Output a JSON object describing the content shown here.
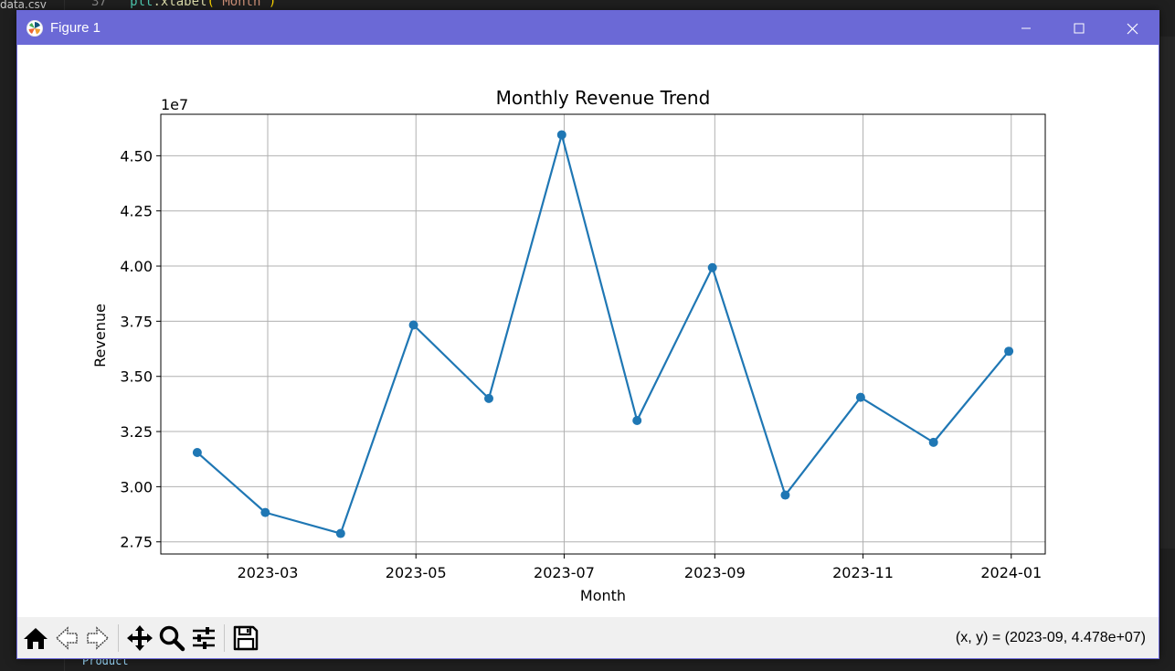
{
  "background": {
    "sidebar_file": "data.csv",
    "code_line_number": "37",
    "code_obj": "plt",
    "code_fn": ".xlabel",
    "code_str": "'Month'",
    "code_bottom": "Product"
  },
  "window": {
    "title": "Figure 1",
    "titlebar_color": "#6b69d6"
  },
  "toolbar": {
    "coords_text": "(x, y) = (2023-09, 4.478e+07)"
  },
  "icons": {
    "home": "home-icon",
    "back": "back-arrow-icon",
    "forward": "forward-arrow-icon",
    "pan": "move-icon",
    "zoom": "magnifier-icon",
    "configure": "sliders-icon",
    "save": "floppy-disk-icon"
  },
  "chart_data": {
    "type": "line",
    "title": "Monthly Revenue Trend",
    "xlabel": "Month",
    "ylabel": "Revenue",
    "y_offset_label": "1e7",
    "x": [
      "2023-01-31",
      "2023-02-28",
      "2023-03-31",
      "2023-04-30",
      "2023-05-31",
      "2023-06-30",
      "2023-07-31",
      "2023-08-31",
      "2023-09-30",
      "2023-10-31",
      "2023-11-30",
      "2023-12-31"
    ],
    "series": [
      {
        "values": [
          31550000,
          28830000,
          27880000,
          37330000,
          34000000,
          45950000,
          33000000,
          39930000,
          29620000,
          34050000,
          32010000,
          36140000
        ],
        "color": "#1f77b4",
        "marker": "circle"
      }
    ],
    "x_ticks": [
      "2023-03",
      "2023-05",
      "2023-07",
      "2023-09",
      "2023-11",
      "2024-01"
    ],
    "x_tick_dates": [
      "2023-03-01",
      "2023-05-01",
      "2023-07-01",
      "2023-09-01",
      "2023-11-01",
      "2024-01-01"
    ],
    "xlim": [
      "2023-01-16",
      "2024-01-15"
    ],
    "y_ticks": [
      2.75,
      3.0,
      3.25,
      3.5,
      3.75,
      4.0,
      4.25,
      4.5
    ],
    "y_tick_labels": [
      "2.75",
      "3.00",
      "3.25",
      "3.50",
      "3.75",
      "4.00",
      "4.25",
      "4.50"
    ],
    "ylim": [
      26950000,
      46880000
    ],
    "grid": true,
    "legend": false
  }
}
